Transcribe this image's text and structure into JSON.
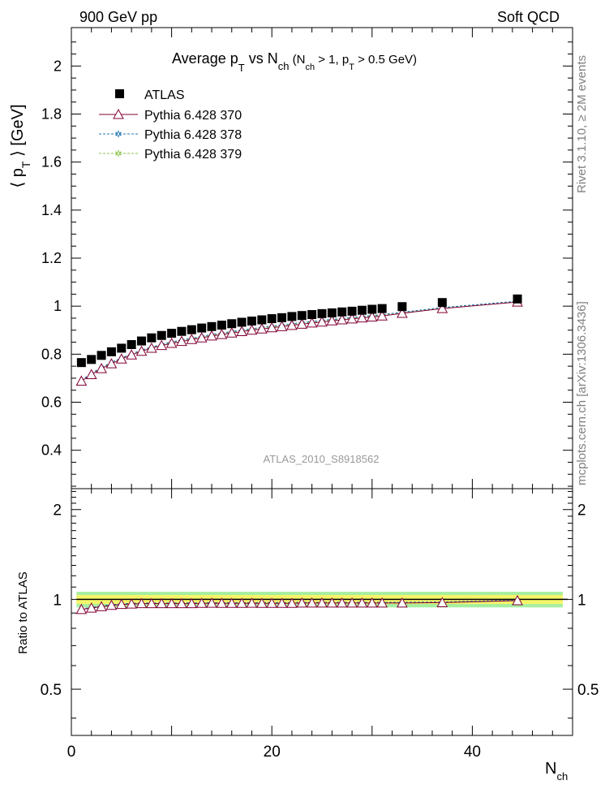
{
  "header": {
    "left": "900 GeV pp",
    "right": "Soft QCD"
  },
  "side_labels": {
    "rivet": "Rivet 3.1.10, ≥ 2M events",
    "mcplots": "mcplots.cern.ch [arXiv:1306.3436]"
  },
  "watermark": "ATLAS_2010_S8918562",
  "chart_data": [
    {
      "type": "scatter",
      "panel": "main",
      "title": "Average p_T vs N_ch (N_ch > 1, p_T > 0.5 GeV)",
      "title_parts": {
        "main": "Average p",
        "sub1": "T",
        "mid": " vs N",
        "sub2": "ch",
        "paren_open": " (N",
        "sub3": "ch",
        "cond1": " > 1, p",
        "sub4": "T",
        "cond2": " > 0.5 GeV)"
      },
      "ylabel": "⟨ p_T ⟩ [GeV]",
      "ylabel_parts": {
        "open": "⟨ p",
        "sub": "T",
        "close": " ⟩ [GeV]"
      },
      "xlabel": "N_ch",
      "xlabel_parts": {
        "main": "N",
        "sub": "ch"
      },
      "xlim": [
        0,
        50
      ],
      "ylim": [
        0.24,
        2.16
      ],
      "yticks": [
        0.4,
        0.6,
        0.8,
        1,
        1.2,
        1.4,
        1.6,
        1.8,
        2
      ],
      "ytick_labels": [
        "0.4",
        "0.6",
        "0.8",
        "1",
        "1.2",
        "1.4",
        "1.6",
        "1.8",
        "2"
      ],
      "legend_position": "top-left",
      "series": [
        {
          "name": "ATLAS",
          "marker": "filled-square",
          "color": "#000000",
          "x": [
            1,
            2,
            3,
            4,
            5,
            6,
            7,
            8,
            9,
            10,
            11,
            12,
            13,
            14,
            15,
            16,
            17,
            18,
            19,
            20,
            21,
            22,
            23,
            24,
            25,
            26,
            27,
            28,
            29,
            30,
            31,
            33,
            37,
            44.5
          ],
          "y": [
            0.765,
            0.778,
            0.795,
            0.81,
            0.825,
            0.84,
            0.855,
            0.868,
            0.878,
            0.887,
            0.895,
            0.902,
            0.909,
            0.915,
            0.921,
            0.927,
            0.933,
            0.938,
            0.943,
            0.948,
            0.952,
            0.957,
            0.961,
            0.965,
            0.969,
            0.972,
            0.976,
            0.979,
            0.983,
            0.987,
            0.99,
            0.998,
            1.015,
            1.03
          ]
        },
        {
          "name": "Pythia 6.428 370",
          "marker": "open-triangle",
          "line_style": "solid",
          "color": "#800033",
          "x": [
            1,
            2,
            3,
            4,
            5,
            6,
            7,
            8,
            9,
            10,
            11,
            12,
            13,
            14,
            15,
            16,
            17,
            18,
            19,
            20,
            21,
            22,
            23,
            24,
            25,
            26,
            27,
            28,
            29,
            30,
            31,
            33,
            37,
            44.5
          ],
          "y": [
            0.688,
            0.715,
            0.74,
            0.76,
            0.78,
            0.797,
            0.812,
            0.825,
            0.836,
            0.845,
            0.853,
            0.861,
            0.868,
            0.876,
            0.882,
            0.888,
            0.894,
            0.9,
            0.905,
            0.91,
            0.915,
            0.92,
            0.925,
            0.93,
            0.934,
            0.939,
            0.943,
            0.947,
            0.951,
            0.955,
            0.959,
            0.97,
            0.99,
            1.017
          ]
        },
        {
          "name": "Pythia 6.428 378",
          "marker": "star",
          "line_style": "dashed",
          "color": "#1f77b4",
          "x": [
            1,
            2,
            3,
            4,
            5,
            6,
            7,
            8,
            9,
            10,
            11,
            12,
            13,
            14,
            15,
            16,
            17,
            18,
            19,
            20,
            21,
            22,
            23,
            24,
            25,
            26,
            27,
            28,
            29,
            30,
            31,
            33,
            37,
            44.5
          ],
          "y": [
            0.692,
            0.72,
            0.745,
            0.766,
            0.785,
            0.802,
            0.817,
            0.83,
            0.841,
            0.851,
            0.859,
            0.867,
            0.874,
            0.882,
            0.888,
            0.895,
            0.901,
            0.906,
            0.912,
            0.917,
            0.922,
            0.927,
            0.932,
            0.936,
            0.941,
            0.945,
            0.949,
            0.953,
            0.957,
            0.961,
            0.965,
            0.975,
            0.994,
            1.021
          ]
        },
        {
          "name": "Pythia 6.428 379",
          "marker": "star",
          "line_style": "dashed",
          "color": "#8bc34a",
          "x": [
            1,
            2,
            3,
            4,
            5,
            6,
            7,
            8,
            9,
            10,
            11,
            12,
            13,
            14,
            15,
            16,
            17,
            18,
            19,
            20,
            21,
            22,
            23,
            24,
            25,
            26,
            27,
            28,
            29,
            30,
            31,
            33,
            37,
            44.5
          ],
          "y": [
            0.69,
            0.718,
            0.743,
            0.763,
            0.782,
            0.799,
            0.814,
            0.827,
            0.838,
            0.848,
            0.856,
            0.864,
            0.871,
            0.879,
            0.885,
            0.892,
            0.898,
            0.903,
            0.909,
            0.914,
            0.919,
            0.924,
            0.929,
            0.933,
            0.938,
            0.942,
            0.946,
            0.95,
            0.954,
            0.958,
            0.962,
            0.972,
            0.992,
            1.019
          ]
        }
      ]
    },
    {
      "type": "line",
      "panel": "ratio",
      "ylabel": "Ratio to ATLAS",
      "xlim": [
        0,
        50
      ],
      "ylim": [
        0.35,
        2.35
      ],
      "xticks": [
        0,
        20,
        40
      ],
      "xtick_labels": [
        "0",
        "20",
        "40"
      ],
      "yticks": [
        0.5,
        1,
        2
      ],
      "ytick_labels": [
        "0.5",
        "1",
        "2"
      ],
      "band_colors": {
        "inner": "#f5f56a",
        "outer": "#a6eea0"
      },
      "band_inner_halfwidth": 0.035,
      "band_outer_halfwidth": 0.06,
      "series": [
        {
          "name": "Pythia 6.428 370",
          "color": "#800033",
          "marker": "open-triangle",
          "x": [
            1,
            2,
            3,
            4,
            5,
            6,
            7,
            8,
            9,
            10,
            11,
            12,
            13,
            14,
            15,
            16,
            17,
            18,
            19,
            20,
            21,
            22,
            23,
            24,
            25,
            26,
            27,
            28,
            29,
            30,
            31,
            33,
            37,
            44.5
          ],
          "y": [
            0.925,
            0.935,
            0.945,
            0.955,
            0.962,
            0.965,
            0.968,
            0.968,
            0.968,
            0.968,
            0.968,
            0.968,
            0.97,
            0.971,
            0.97,
            0.97,
            0.97,
            0.971,
            0.97,
            0.97,
            0.97,
            0.97,
            0.972,
            0.972,
            0.972,
            0.972,
            0.972,
            0.972,
            0.972,
            0.972,
            0.972,
            0.972,
            0.975,
            0.99
          ]
        },
        {
          "name": "Pythia 6.428 378",
          "color": "#1f77b4",
          "marker": "star",
          "x": [
            1,
            2,
            3,
            4,
            5,
            6,
            7,
            8,
            9,
            10,
            11,
            12,
            13,
            14,
            15,
            16,
            17,
            18,
            19,
            20,
            21,
            22,
            23,
            24,
            25,
            26,
            27,
            28,
            29,
            30,
            31,
            33,
            37,
            44.5
          ],
          "y": [
            0.93,
            0.94,
            0.95,
            0.96,
            0.966,
            0.97,
            0.972,
            0.972,
            0.972,
            0.973,
            0.973,
            0.973,
            0.974,
            0.975,
            0.975,
            0.975,
            0.975,
            0.975,
            0.976,
            0.976,
            0.976,
            0.976,
            0.977,
            0.977,
            0.977,
            0.977,
            0.977,
            0.977,
            0.977,
            0.977,
            0.977,
            0.978,
            0.98,
            0.995
          ]
        },
        {
          "name": "Pythia 6.428 379",
          "color": "#8bc34a",
          "marker": "star",
          "x": [
            1,
            2,
            3,
            4,
            5,
            6,
            7,
            8,
            9,
            10,
            11,
            12,
            13,
            14,
            15,
            16,
            17,
            18,
            19,
            20,
            21,
            22,
            23,
            24,
            25,
            26,
            27,
            28,
            29,
            30,
            31,
            33,
            37,
            44.5
          ],
          "y": [
            0.928,
            0.938,
            0.948,
            0.958,
            0.964,
            0.968,
            0.97,
            0.97,
            0.97,
            0.971,
            0.971,
            0.971,
            0.972,
            0.973,
            0.973,
            0.973,
            0.973,
            0.973,
            0.974,
            0.974,
            0.974,
            0.974,
            0.975,
            0.975,
            0.975,
            0.975,
            0.975,
            0.975,
            0.975,
            0.975,
            0.975,
            0.976,
            0.978,
            0.993
          ]
        }
      ]
    }
  ]
}
